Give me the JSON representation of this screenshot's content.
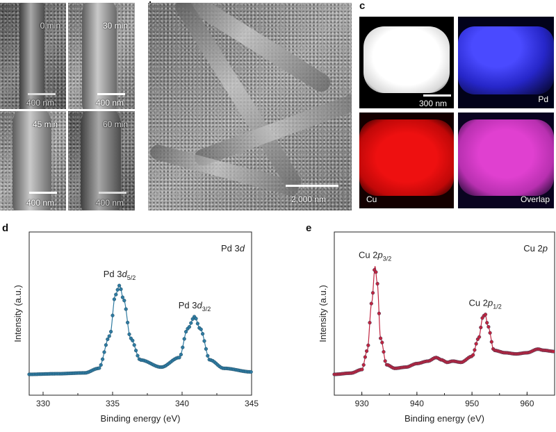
{
  "panel_labels": {
    "a": "a",
    "b": "b",
    "c": "c",
    "d": "d",
    "e": "e"
  },
  "panel_a": {
    "tiles": [
      {
        "time": "0 min",
        "scale": "400 nm"
      },
      {
        "time": "30 min",
        "scale": "400 nm"
      },
      {
        "time": "45 min",
        "scale": "400 nm"
      },
      {
        "time": "60 min",
        "scale": "400 nm"
      }
    ]
  },
  "panel_b": {
    "scale": "2,000 nm"
  },
  "panel_c": {
    "scale": "300 nm",
    "labels": {
      "pd": "Pd",
      "cu": "Cu",
      "overlap": "Overlap"
    },
    "colors": {
      "pd": "#2a2ad0",
      "cu": "#e01010",
      "overlap": "#d040c0"
    }
  },
  "chart_data": [
    {
      "type": "line",
      "title": "Pd 3d",
      "xlabel": "Binding energy (eV)",
      "ylabel": "Intensity (a.u.)",
      "xlim": [
        329,
        345
      ],
      "xticks": [
        330,
        335,
        340,
        345
      ],
      "color": "#2e7aa0",
      "series": [
        {
          "x": [
            329,
            331,
            333,
            334,
            334.8,
            335.2,
            335.5,
            335.8,
            336.3,
            337,
            338.5,
            339.8,
            340.4,
            340.9,
            341.3,
            342,
            343,
            345
          ],
          "y": [
            0.0,
            0.005,
            0.012,
            0.05,
            0.32,
            0.66,
            0.74,
            0.62,
            0.3,
            0.12,
            0.06,
            0.14,
            0.38,
            0.48,
            0.38,
            0.12,
            0.05,
            0.02
          ]
        }
      ],
      "annotations": [
        {
          "base": "Pd 3",
          "italic": "d",
          "sub": "5/2",
          "x": 335.5,
          "y": 0.74
        },
        {
          "base": "Pd 3",
          "italic": "d",
          "sub": "3/2",
          "x": 340.9,
          "y": 0.48
        }
      ]
    },
    {
      "type": "line",
      "title": "Cu 2p",
      "xlabel": "Binding energy (eV)",
      "ylabel": "Intensity (a.u.)",
      "xlim": [
        925,
        965
      ],
      "xticks": [
        930,
        940,
        950,
        960
      ],
      "color": "#c0233f",
      "series": [
        {
          "x": [
            925,
            928,
            930,
            931,
            931.8,
            932.4,
            932.8,
            933.4,
            934.5,
            936,
            938,
            940,
            942,
            943.5,
            944.5,
            945.5,
            946.5,
            948,
            950,
            951.2,
            952,
            952.4,
            952.9,
            954,
            956,
            958,
            960,
            962,
            963,
            965
          ],
          "y": [
            0.0,
            0.01,
            0.04,
            0.2,
            0.6,
            0.9,
            0.76,
            0.3,
            0.08,
            0.05,
            0.06,
            0.09,
            0.11,
            0.14,
            0.12,
            0.1,
            0.11,
            0.1,
            0.15,
            0.3,
            0.48,
            0.5,
            0.4,
            0.2,
            0.18,
            0.17,
            0.18,
            0.21,
            0.2,
            0.19
          ]
        }
      ],
      "annotations": [
        {
          "base": "Cu 2",
          "italic": "p",
          "sub": "3/2",
          "x": 932.4,
          "y": 0.9
        },
        {
          "base": "Cu 2",
          "italic": "p",
          "sub": "1/2",
          "x": 952.4,
          "y": 0.5
        }
      ]
    }
  ]
}
